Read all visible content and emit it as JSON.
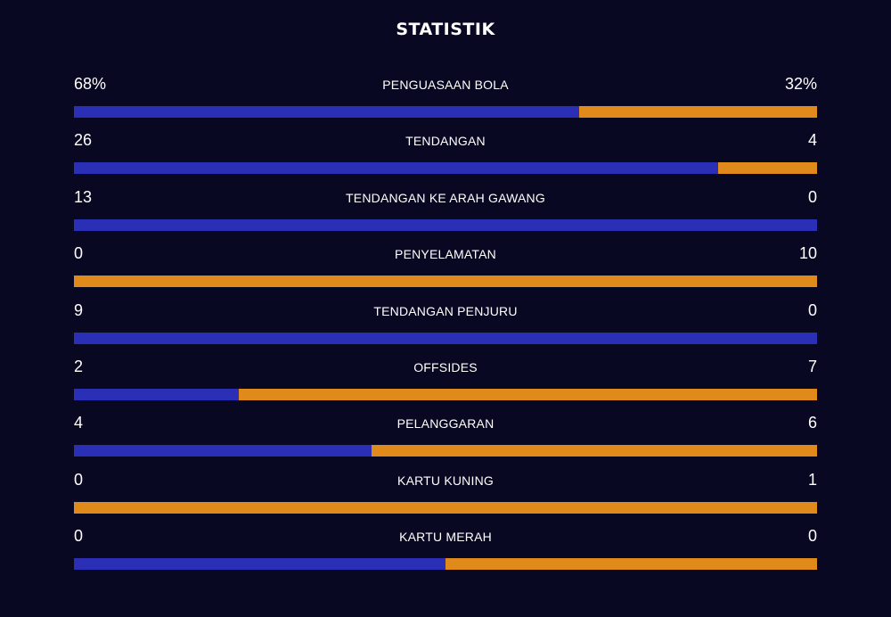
{
  "title": "STATISTIK",
  "colors": {
    "background": "#080823",
    "home": "#2b2fb5",
    "away": "#e08a1c",
    "text": "#ffffff"
  },
  "stats": [
    {
      "label": "PENGUASAAN BOLA",
      "left": "68%",
      "right": "32%",
      "left_share": 0.68
    },
    {
      "label": "TENDANGAN",
      "left": "26",
      "right": "4",
      "left_share": 0.8667
    },
    {
      "label": "TENDANGAN KE ARAH GAWANG",
      "left": "13",
      "right": "0",
      "left_share": 1.0
    },
    {
      "label": "PENYELAMATAN",
      "left": "0",
      "right": "10",
      "left_share": 0.0
    },
    {
      "label": "TENDANGAN PENJURU",
      "left": "9",
      "right": "0",
      "left_share": 1.0
    },
    {
      "label": "OFFSIDES",
      "left": "2",
      "right": "7",
      "left_share": 0.2222
    },
    {
      "label": "PELANGGARAN",
      "left": "4",
      "right": "6",
      "left_share": 0.4
    },
    {
      "label": "KARTU KUNING",
      "left": "0",
      "right": "1",
      "left_share": 0.0
    },
    {
      "label": "KARTU MERAH",
      "left": "0",
      "right": "0",
      "left_share": 0.5
    }
  ]
}
